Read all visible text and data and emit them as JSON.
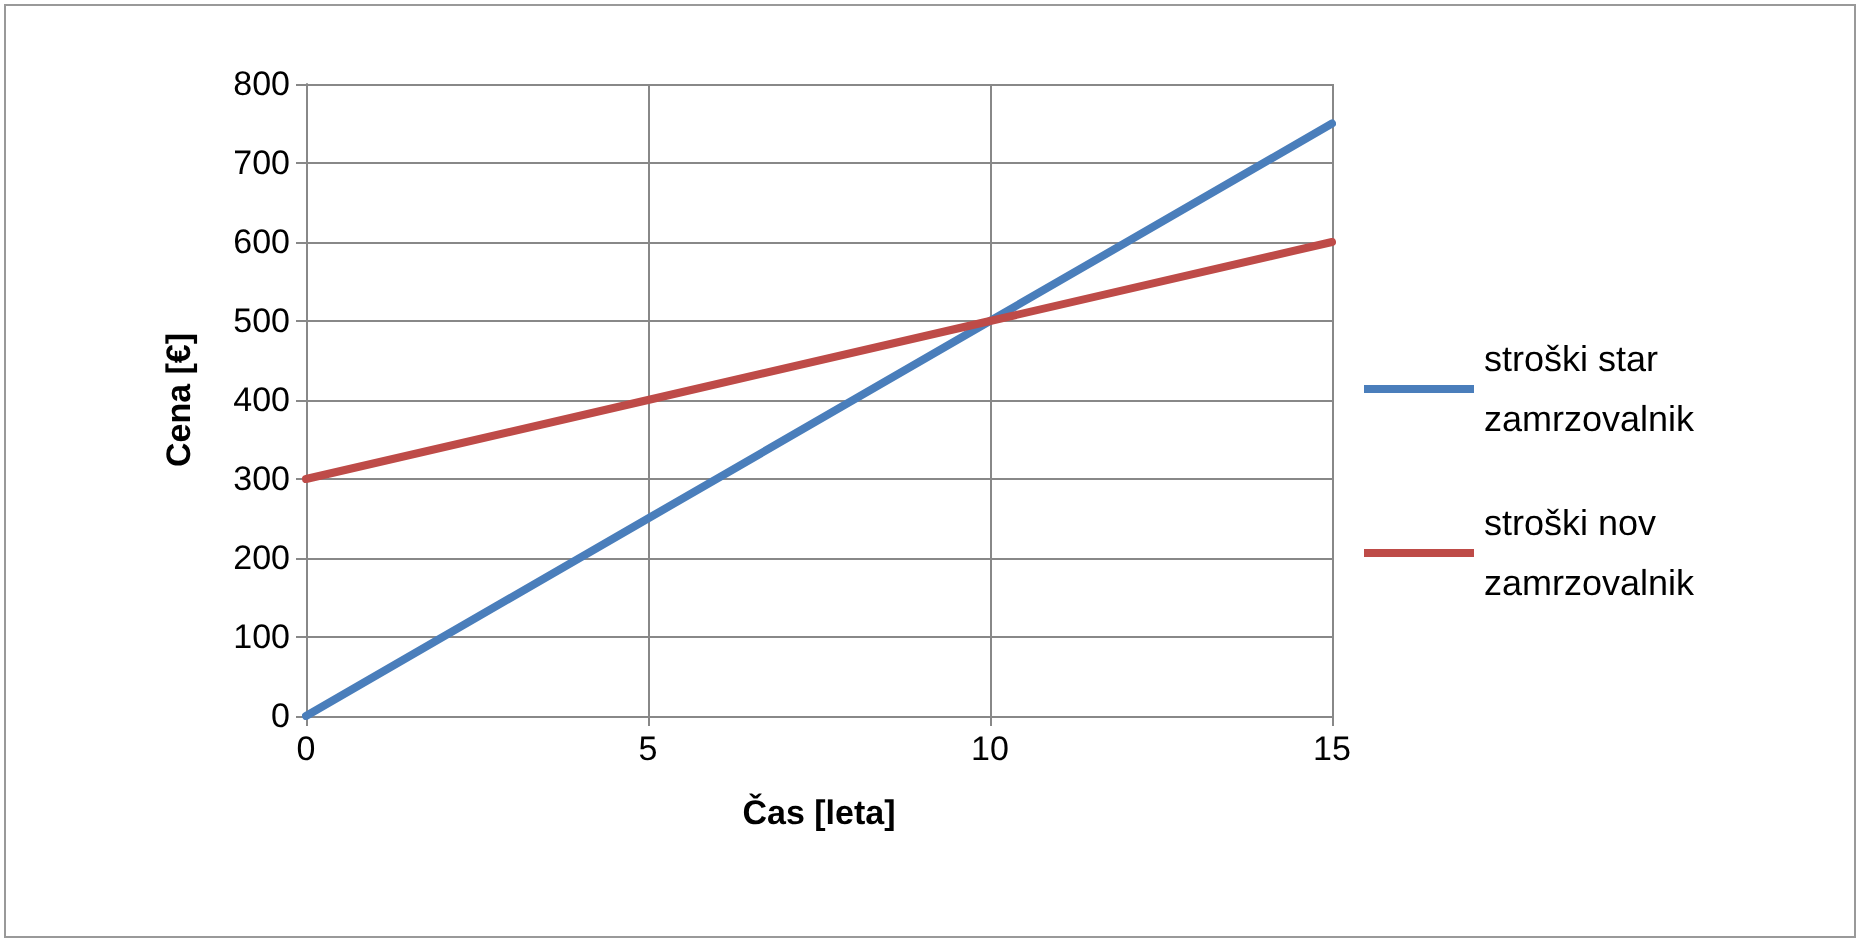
{
  "chart_data": {
    "type": "line",
    "xlabel": "Čas [leta]",
    "ylabel": "Cena [€]",
    "x": [
      0,
      5,
      10,
      15
    ],
    "series": [
      {
        "name": "stroški star zamrzovalnik",
        "color": "#4a7ebb",
        "values": [
          0,
          250,
          500,
          750
        ]
      },
      {
        "name": "stroški nov zamrzovalnik",
        "color": "#be4b48",
        "values": [
          300,
          400,
          500,
          600
        ]
      }
    ],
    "xlim": [
      0,
      15
    ],
    "xticks": [
      0,
      5,
      10,
      15
    ],
    "ylim": [
      0,
      800
    ],
    "yticks": [
      0,
      100,
      200,
      300,
      400,
      500,
      600,
      700,
      800
    ],
    "grid": true,
    "legend": "right",
    "marker": "none",
    "line_style": "solid"
  }
}
